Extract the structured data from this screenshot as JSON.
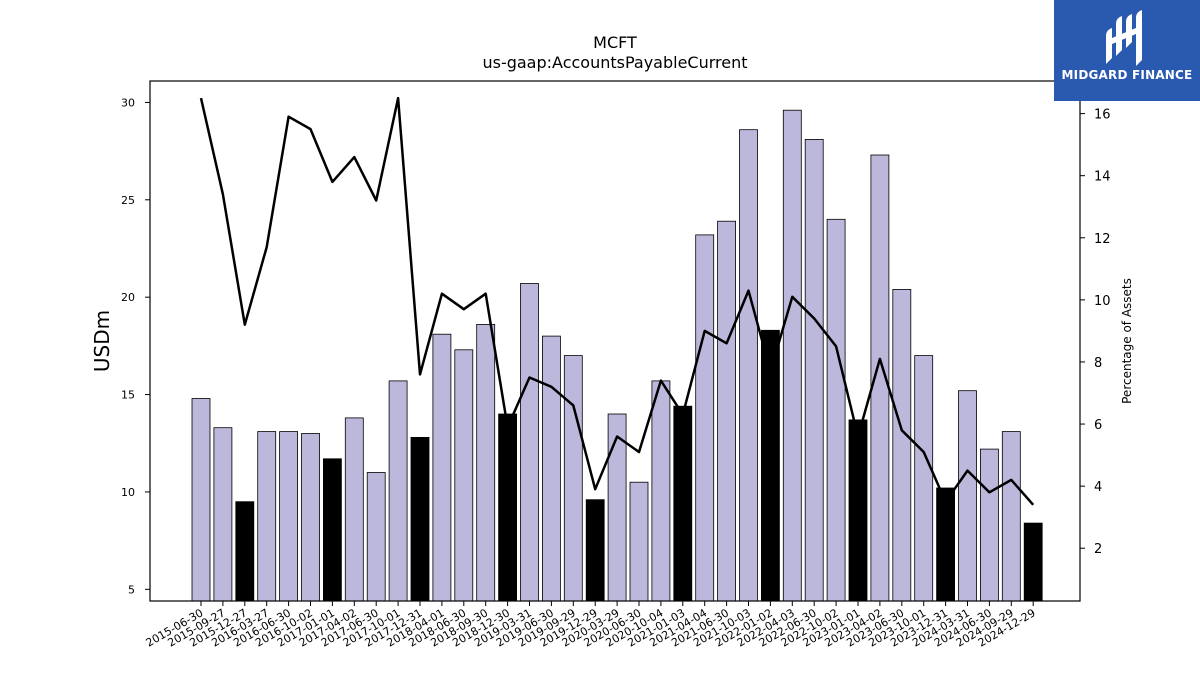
{
  "brand": {
    "name": "MIDGARD FINANCE",
    "color": "#2a59b0",
    "icon": "midgard-logo-icon"
  },
  "colors": {
    "bar_default": "#bcb8dc",
    "bar_highlight": "#000000",
    "line": "#000000"
  },
  "chart_data": {
    "type": "bar",
    "title": "MCFT",
    "subtitle": "us-gaap:AccountsPayableCurrent",
    "ylabel": "USDm",
    "y2label": "Percentage of Assets",
    "ylim": [
      4.4,
      31.1
    ],
    "y2lim": [
      0.3,
      17.05
    ],
    "yticks": [
      5,
      10,
      15,
      20,
      25,
      30
    ],
    "y2ticks": [
      2,
      4,
      6,
      8,
      10,
      12,
      14,
      16
    ],
    "grid": false,
    "categories": [
      "2015-06-30",
      "2015-09-27",
      "2015-12-27",
      "2016-03-27",
      "2016-06-30",
      "2016-10-02",
      "2017-01-01",
      "2017-04-02",
      "2017-06-30",
      "2017-10-01",
      "2017-12-31",
      "2018-04-01",
      "2018-06-30",
      "2018-09-30",
      "2018-12-30",
      "2019-03-31",
      "2019-06-30",
      "2019-09-29",
      "2019-12-29",
      "2020-03-29",
      "2020-06-30",
      "2020-10-04",
      "2021-01-03",
      "2021-04-04",
      "2021-06-30",
      "2021-10-03",
      "2022-01-02",
      "2022-04-03",
      "2022-06-30",
      "2022-10-02",
      "2023-01-01",
      "2023-04-02",
      "2023-06-30",
      "2023-10-01",
      "2023-12-31",
      "2024-03-31",
      "2024-06-30",
      "2024-09-29",
      "2024-12-29"
    ],
    "series": [
      {
        "kind": "bar",
        "values": [
          14.8,
          13.3,
          9.5,
          13.1,
          13.1,
          13.0,
          11.7,
          13.8,
          11.0,
          15.7,
          12.8,
          18.1,
          17.3,
          18.6,
          14.0,
          20.7,
          18.0,
          17.0,
          9.6,
          14.0,
          10.5,
          15.7,
          14.4,
          23.2,
          23.9,
          28.6,
          18.3,
          29.6,
          28.1,
          24.0,
          13.7,
          27.3,
          20.4,
          17.0,
          10.2,
          15.2,
          12.2,
          13.1,
          8.4
        ],
        "highlight": [
          false,
          false,
          true,
          false,
          false,
          false,
          true,
          false,
          false,
          false,
          true,
          false,
          false,
          false,
          true,
          false,
          false,
          false,
          true,
          false,
          false,
          false,
          true,
          false,
          false,
          false,
          true,
          false,
          false,
          false,
          true,
          false,
          false,
          false,
          true,
          false,
          false,
          false,
          true
        ]
      },
      {
        "kind": "line",
        "axis": "right",
        "values": [
          16.5,
          13.4,
          9.2,
          11.7,
          15.9,
          15.5,
          13.8,
          14.6,
          13.2,
          16.5,
          7.6,
          10.2,
          9.7,
          10.2,
          5.9,
          7.5,
          7.2,
          6.6,
          3.9,
          5.6,
          5.1,
          7.4,
          6.3,
          9.0,
          8.6,
          10.3,
          7.7,
          10.1,
          9.4,
          8.5,
          5.6,
          8.1,
          5.8,
          5.1,
          3.5,
          4.5,
          3.8,
          4.2,
          3.4
        ]
      }
    ]
  }
}
